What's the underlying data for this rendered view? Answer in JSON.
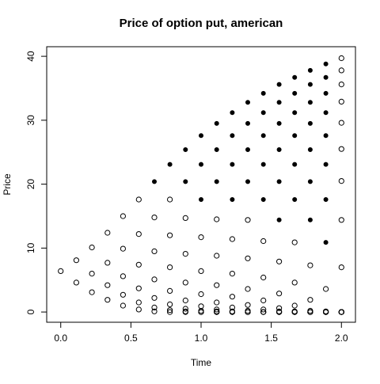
{
  "chart_data": {
    "type": "scatter",
    "title": "Price of option put, american",
    "xlabel": "Time",
    "ylabel": "Price",
    "xlim": [
      -0.1,
      2.1
    ],
    "ylim": [
      -1.6,
      41.5
    ],
    "x_ticks": [
      0.0,
      0.5,
      1.0,
      1.5,
      2.0
    ],
    "x_tick_labels": [
      "0.0",
      "0.5",
      "1.0",
      "1.5",
      "2.0"
    ],
    "y_ticks": [
      0,
      10,
      20,
      30,
      40
    ],
    "y_tick_labels": [
      "0",
      "10",
      "20",
      "30",
      "40"
    ],
    "grid": false,
    "legend": "none",
    "series": [
      {
        "marker": "open-circle",
        "color": "#000000",
        "points": [
          [
            0.0,
            6.4
          ],
          [
            0.111,
            8.1
          ],
          [
            0.111,
            4.6
          ],
          [
            0.222,
            10.1
          ],
          [
            0.222,
            6.0
          ],
          [
            0.222,
            3.1
          ],
          [
            0.333,
            12.4
          ],
          [
            0.333,
            7.7
          ],
          [
            0.333,
            4.2
          ],
          [
            0.333,
            1.9
          ],
          [
            0.444,
            15.0
          ],
          [
            0.444,
            9.9
          ],
          [
            0.444,
            5.6
          ],
          [
            0.444,
            2.7
          ],
          [
            0.444,
            1.0
          ],
          [
            0.556,
            17.6
          ],
          [
            0.556,
            12.2
          ],
          [
            0.556,
            7.4
          ],
          [
            0.556,
            3.7
          ],
          [
            0.556,
            1.5
          ],
          [
            0.556,
            0.4
          ],
          [
            0.667,
            14.8
          ],
          [
            0.667,
            9.5
          ],
          [
            0.667,
            5.1
          ],
          [
            0.667,
            2.2
          ],
          [
            0.667,
            0.7
          ],
          [
            0.667,
            0.1
          ],
          [
            0.778,
            17.6
          ],
          [
            0.778,
            12.0
          ],
          [
            0.778,
            7.0
          ],
          [
            0.778,
            3.3
          ],
          [
            0.778,
            1.2
          ],
          [
            0.778,
            0.3
          ],
          [
            0.778,
            0.0
          ],
          [
            0.889,
            14.7
          ],
          [
            0.889,
            9.1
          ],
          [
            0.889,
            4.6
          ],
          [
            0.889,
            1.8
          ],
          [
            0.889,
            0.5
          ],
          [
            0.889,
            0.1
          ],
          [
            0.889,
            0.0
          ],
          [
            1.0,
            11.7
          ],
          [
            1.0,
            6.4
          ],
          [
            1.0,
            2.8
          ],
          [
            1.0,
            0.9
          ],
          [
            1.0,
            0.2
          ],
          [
            1.0,
            0.0
          ],
          [
            1.0,
            0.0
          ],
          [
            1.111,
            14.5
          ],
          [
            1.111,
            8.8
          ],
          [
            1.111,
            4.2
          ],
          [
            1.111,
            1.5
          ],
          [
            1.111,
            0.4
          ],
          [
            1.111,
            0.1
          ],
          [
            1.111,
            0.0
          ],
          [
            1.111,
            0.0
          ],
          [
            1.222,
            11.4
          ],
          [
            1.222,
            6.0
          ],
          [
            1.222,
            2.4
          ],
          [
            1.222,
            0.7
          ],
          [
            1.222,
            0.1
          ],
          [
            1.222,
            0.0
          ],
          [
            1.222,
            0.0
          ],
          [
            1.333,
            14.4
          ],
          [
            1.333,
            8.4
          ],
          [
            1.333,
            3.6
          ],
          [
            1.333,
            1.1
          ],
          [
            1.333,
            0.2
          ],
          [
            1.333,
            0.0
          ],
          [
            1.333,
            0.0
          ],
          [
            1.333,
            0.0
          ],
          [
            1.444,
            11.1
          ],
          [
            1.444,
            5.4
          ],
          [
            1.444,
            1.8
          ],
          [
            1.444,
            0.4
          ],
          [
            1.444,
            0.0
          ],
          [
            1.444,
            0.0
          ],
          [
            1.444,
            0.0
          ],
          [
            1.556,
            7.9
          ],
          [
            1.556,
            2.9
          ],
          [
            1.556,
            0.6
          ],
          [
            1.556,
            0.1
          ],
          [
            1.556,
            0.0
          ],
          [
            1.556,
            0.0
          ],
          [
            1.556,
            0.0
          ],
          [
            1.667,
            10.9
          ],
          [
            1.667,
            4.6
          ],
          [
            1.667,
            1.0
          ],
          [
            1.667,
            0.1
          ],
          [
            1.667,
            0.0
          ],
          [
            1.667,
            0.0
          ],
          [
            1.667,
            0.0
          ],
          [
            1.778,
            7.3
          ],
          [
            1.778,
            1.9
          ],
          [
            1.778,
            0.2
          ],
          [
            1.778,
            0.0
          ],
          [
            1.778,
            0.0
          ],
          [
            1.778,
            0.0
          ],
          [
            1.778,
            0.0
          ],
          [
            1.889,
            3.6
          ],
          [
            1.889,
            0.1
          ],
          [
            1.889,
            0.0
          ],
          [
            1.889,
            0.0
          ],
          [
            1.889,
            0.0
          ],
          [
            1.889,
            0.0
          ],
          [
            1.889,
            0.0
          ],
          [
            2.0,
            39.7
          ],
          [
            2.0,
            37.8
          ],
          [
            2.0,
            35.6
          ],
          [
            2.0,
            32.9
          ],
          [
            2.0,
            29.6
          ],
          [
            2.0,
            25.5
          ],
          [
            2.0,
            20.5
          ],
          [
            2.0,
            14.4
          ],
          [
            2.0,
            7.0
          ],
          [
            2.0,
            0.0
          ],
          [
            2.0,
            0.0
          ],
          [
            2.0,
            0.0
          ],
          [
            2.0,
            0.0
          ],
          [
            2.0,
            0.0
          ],
          [
            2.0,
            0.0
          ],
          [
            2.0,
            0.0
          ],
          [
            2.0,
            0.0
          ],
          [
            2.0,
            0.0
          ],
          [
            2.0,
            0.0
          ]
        ]
      },
      {
        "marker": "filled-circle",
        "color": "#000000",
        "points": [
          [
            0.667,
            20.4
          ],
          [
            0.778,
            23.1
          ],
          [
            0.889,
            25.4
          ],
          [
            0.889,
            20.4
          ],
          [
            1.0,
            27.6
          ],
          [
            1.0,
            23.1
          ],
          [
            1.0,
            17.6
          ],
          [
            1.111,
            29.5
          ],
          [
            1.111,
            25.4
          ],
          [
            1.111,
            20.4
          ],
          [
            1.222,
            31.2
          ],
          [
            1.222,
            27.6
          ],
          [
            1.222,
            23.1
          ],
          [
            1.222,
            17.6
          ],
          [
            1.333,
            32.8
          ],
          [
            1.333,
            29.5
          ],
          [
            1.333,
            25.4
          ],
          [
            1.333,
            20.4
          ],
          [
            1.444,
            34.2
          ],
          [
            1.444,
            31.2
          ],
          [
            1.444,
            27.6
          ],
          [
            1.444,
            23.1
          ],
          [
            1.444,
            17.6
          ],
          [
            1.556,
            35.6
          ],
          [
            1.556,
            32.8
          ],
          [
            1.556,
            29.5
          ],
          [
            1.556,
            25.4
          ],
          [
            1.556,
            20.4
          ],
          [
            1.556,
            14.4
          ],
          [
            1.667,
            36.7
          ],
          [
            1.667,
            34.2
          ],
          [
            1.667,
            31.2
          ],
          [
            1.667,
            27.6
          ],
          [
            1.667,
            23.1
          ],
          [
            1.667,
            17.6
          ],
          [
            1.778,
            37.8
          ],
          [
            1.778,
            35.6
          ],
          [
            1.778,
            32.8
          ],
          [
            1.778,
            29.5
          ],
          [
            1.778,
            25.4
          ],
          [
            1.778,
            20.4
          ],
          [
            1.778,
            14.4
          ],
          [
            1.889,
            38.8
          ],
          [
            1.889,
            36.7
          ],
          [
            1.889,
            34.2
          ],
          [
            1.889,
            31.2
          ],
          [
            1.889,
            27.6
          ],
          [
            1.889,
            23.1
          ],
          [
            1.889,
            17.6
          ],
          [
            1.889,
            10.9
          ]
        ]
      }
    ]
  }
}
